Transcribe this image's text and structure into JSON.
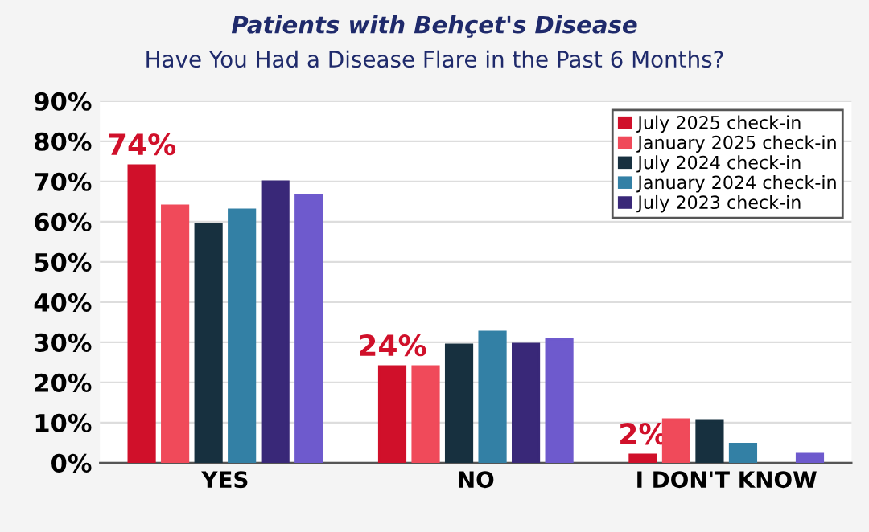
{
  "chart_data": {
    "type": "bar",
    "title": "Patients with Behçet's Disease",
    "subtitle": "Have You Had a Disease Flare in the Past 6 Months?",
    "categories": [
      "YES",
      "NO",
      "I DON'T KNOW"
    ],
    "series": [
      {
        "name": "July 2025 check-in",
        "color": "#d0102a",
        "values": [
          74,
          24,
          2
        ],
        "value_labels": [
          "74%",
          "24%",
          "2%"
        ]
      },
      {
        "name": "January 2025 check-in",
        "color": "#f04a5a",
        "values": [
          64,
          24,
          10.8
        ]
      },
      {
        "name": "July 2024 check-in",
        "color": "#17303f",
        "values": [
          59.5,
          29.4,
          10.4
        ]
      },
      {
        "name": "January 2024 check-in",
        "color": "#3380a5",
        "values": [
          63,
          32.6,
          4.7
        ]
      },
      {
        "name": "July 2023 check-in",
        "color": "#392878",
        "values": [
          70,
          29.6,
          null
        ]
      },
      {
        "color": "#6e5acd",
        "values": [
          66.5,
          30.7,
          2.2
        ]
      }
    ],
    "ylim": [
      0,
      90
    ],
    "yticks": [
      {
        "value": 0,
        "label": "0%"
      },
      {
        "value": 10,
        "label": "10%"
      },
      {
        "value": 20,
        "label": "20%"
      },
      {
        "value": 30,
        "label": "30%"
      },
      {
        "value": 40,
        "label": "40%"
      },
      {
        "value": 50,
        "label": "50%"
      },
      {
        "value": 60,
        "label": "60%"
      },
      {
        "value": 70,
        "label": "70%"
      },
      {
        "value": 80,
        "label": "80%"
      },
      {
        "value": 90,
        "label": "90%"
      }
    ],
    "grid": "y",
    "legend": "top right"
  }
}
